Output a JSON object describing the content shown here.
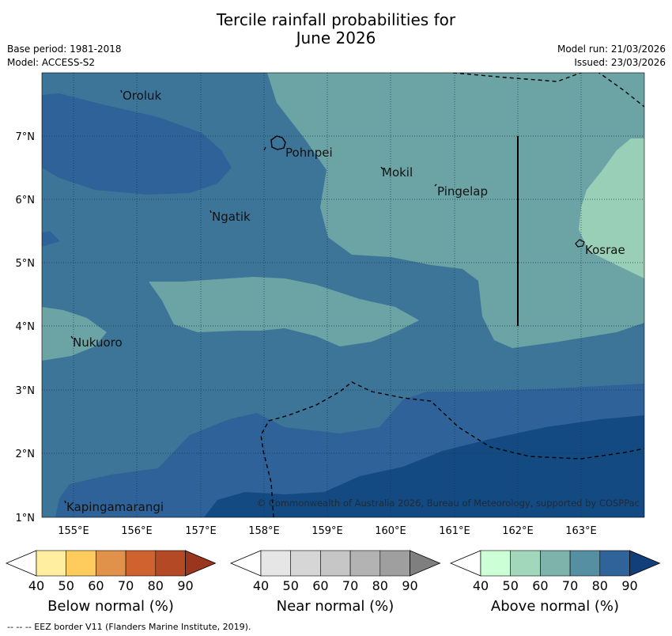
{
  "title_line1": "Tercile rainfall probabilities for",
  "title_line2": "June 2026",
  "meta": {
    "base_period": "Base period: 1981-2018",
    "model": "Model: ACCESS-S2",
    "model_run": "Model run: 21/03/2026",
    "issued": "Issued: 23/03/2026"
  },
  "map": {
    "lat_labels": [
      "7°N",
      "6°N",
      "5°N",
      "4°N",
      "3°N",
      "2°N",
      "1°N"
    ],
    "lon_labels": [
      "155°E",
      "156°E",
      "157°E",
      "158°E",
      "159°E",
      "160°E",
      "161°E",
      "162°E",
      "163°E"
    ],
    "places": {
      "oroluk": "Oroluk",
      "pohnpei": "Pohnpei",
      "mokil": "Mokil",
      "pingelap": "Pingelap",
      "ngatik": "Ngatik",
      "kosrae": "Kosrae",
      "nukuoro": "Nukuoro",
      "kapingamarangi": "Kapingamarangi"
    },
    "copyright": "© Commonwealth of Australia 2026, Bureau of Meteorology, supported by COSPPac"
  },
  "colorbars": {
    "ticks": [
      "40",
      "50",
      "60",
      "70",
      "80",
      "90"
    ],
    "below": {
      "label": "Below normal (%)",
      "colors": [
        "#ffffff",
        "#ffeda0",
        "#fecc5c",
        "#e0914a",
        "#d0622f",
        "#b44a25",
        "#9a3520"
      ]
    },
    "near": {
      "label": "Near normal (%)",
      "colors": [
        "#ffffff",
        "#e6e6e6",
        "#d6d6d6",
        "#c6c6c6",
        "#b3b3b3",
        "#9f9f9f",
        "#7f7f7f"
      ]
    },
    "above": {
      "label": "Above normal (%)",
      "colors": [
        "#ffffff",
        "#ccffd6",
        "#a2d7bc",
        "#7eb3ac",
        "#568fa2",
        "#2f6399",
        "#123f7a"
      ]
    }
  },
  "colors": {
    "above_45_50": "#9acfb7",
    "above_50_60": "#6ca3a5",
    "above_60_70": "#3d7599",
    "above_70_80": "#2e6298",
    "above_80_90": "#134a82"
  },
  "footnote": "--  --  -- EEZ border V11 (Flanders Marine Institute, 2019)."
}
